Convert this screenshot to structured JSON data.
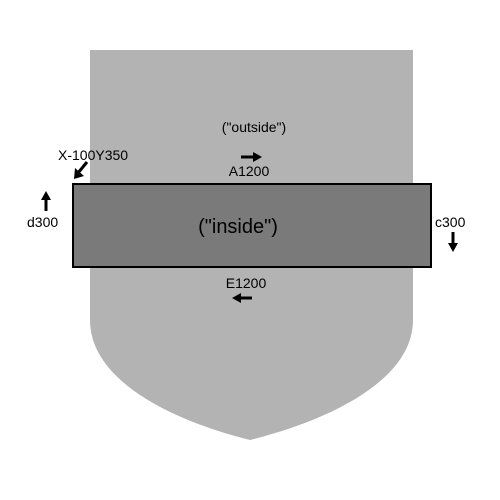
{
  "colors": {
    "background": "#ffffff",
    "outer_region": "#b3b3b3",
    "inner_rect": "#7a7a7a",
    "stroke": "#000000",
    "arrow": "#000000"
  },
  "labels": {
    "outside": "(\"outside\")",
    "inside": "(\"inside\")",
    "start_point": "X-100Y350",
    "top_edge": "A1200",
    "right_edge": "c300",
    "bottom_edge": "E1200",
    "left_edge": "d300"
  },
  "arrows": {
    "start_point": "diagonal-down-left-arrow-icon",
    "top_edge": "right-arrow-icon",
    "right_edge": "down-arrow-icon",
    "bottom_edge": "left-arrow-icon",
    "left_edge": "up-arrow-icon"
  }
}
